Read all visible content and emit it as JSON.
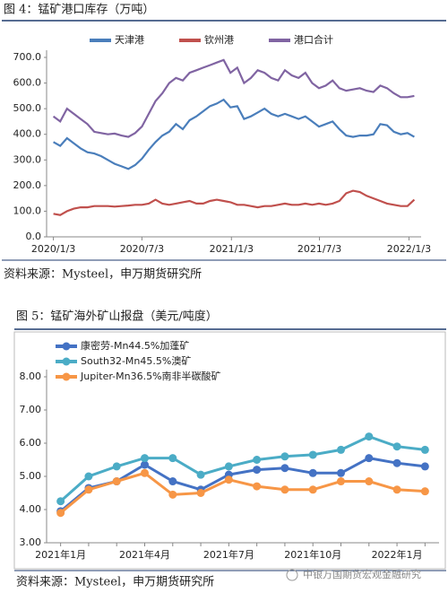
{
  "chart_data": [
    {
      "type": "line",
      "title": "图 4：锰矿港口库存（万吨）",
      "source": "资料来源：Mysteel，申万期货研究所",
      "x": [
        "2020/1/3",
        "2020/1/17",
        "2020/1/31",
        "2020/2/14",
        "2020/2/28",
        "2020/3/13",
        "2020/3/27",
        "2020/4/10",
        "2020/4/24",
        "2020/5/8",
        "2020/5/22",
        "2020/6/5",
        "2020/6/19",
        "2020/7/3",
        "2020/7/17",
        "2020/7/31",
        "2020/8/14",
        "2020/8/28",
        "2020/9/11",
        "2020/9/25",
        "2020/10/9",
        "2020/10/23",
        "2020/11/6",
        "2020/11/20",
        "2020/12/4",
        "2020/12/18",
        "2021/1/1",
        "2021/1/15",
        "2021/1/29",
        "2021/2/12",
        "2021/2/26",
        "2021/3/12",
        "2021/3/26",
        "2021/4/9",
        "2021/4/23",
        "2021/5/7",
        "2021/5/21",
        "2021/6/4",
        "2021/6/18",
        "2021/7/2",
        "2021/7/16",
        "2021/7/30",
        "2021/8/13",
        "2021/8/27",
        "2021/9/10",
        "2021/9/24",
        "2021/10/8",
        "2021/10/22",
        "2021/11/5",
        "2021/11/19",
        "2021/12/3",
        "2021/12/17",
        "2021/12/31",
        "2022/1/14"
      ],
      "series": [
        {
          "name": "天津港",
          "color": "#4a7ebb",
          "values": [
            370,
            355,
            385,
            365,
            345,
            330,
            325,
            315,
            300,
            285,
            275,
            265,
            280,
            305,
            340,
            370,
            395,
            410,
            440,
            420,
            455,
            470,
            490,
            510,
            520,
            535,
            505,
            510,
            460,
            470,
            485,
            500,
            480,
            470,
            480,
            470,
            460,
            470,
            450,
            430,
            440,
            450,
            420,
            395,
            390,
            395,
            395,
            400,
            440,
            435,
            410,
            400,
            405,
            390
          ]
        },
        {
          "name": "钦州港",
          "color": "#c0504d",
          "values": [
            90,
            85,
            100,
            110,
            115,
            115,
            120,
            120,
            120,
            118,
            120,
            122,
            125,
            125,
            130,
            145,
            130,
            125,
            130,
            135,
            140,
            130,
            130,
            140,
            145,
            140,
            135,
            125,
            125,
            120,
            115,
            120,
            120,
            125,
            130,
            125,
            125,
            130,
            125,
            130,
            125,
            130,
            140,
            170,
            180,
            175,
            160,
            150,
            140,
            130,
            125,
            120,
            120,
            145
          ]
        },
        {
          "name": "港口合计",
          "color": "#8064a2",
          "values": [
            470,
            450,
            500,
            480,
            460,
            440,
            410,
            405,
            400,
            403,
            395,
            390,
            405,
            430,
            480,
            530,
            560,
            600,
            620,
            610,
            640,
            650,
            660,
            670,
            680,
            690,
            640,
            660,
            600,
            620,
            650,
            640,
            620,
            610,
            650,
            630,
            620,
            640,
            600,
            580,
            590,
            610,
            580,
            570,
            575,
            580,
            570,
            565,
            590,
            580,
            560,
            545,
            545,
            550
          ]
        }
      ],
      "ylim": [
        0,
        700
      ],
      "yticks": [
        {
          "value": 0,
          "label": "0.0"
        },
        {
          "value": 100,
          "label": "100.0"
        },
        {
          "value": 200,
          "label": "200.0"
        },
        {
          "value": 300,
          "label": "300.0"
        },
        {
          "value": 400,
          "label": "400.0"
        },
        {
          "value": 500,
          "label": "500.0"
        },
        {
          "value": 600,
          "label": "600.0"
        },
        {
          "value": 700,
          "label": "700.0"
        }
      ],
      "xlim": [
        "2019/12/20",
        "2022/1/28"
      ],
      "xticks": [
        "2020/1/3",
        "2020/7/3",
        "2021/1/3",
        "2021/7/3",
        "2022/1/3"
      ],
      "grid": false,
      "legend": "top"
    },
    {
      "type": "line",
      "title": "图 5：锰矿海外矿山报盘（美元/吨度）",
      "source": "资料来源：Mysteel，申万期货研究所",
      "categories": [
        "2021年1月",
        null,
        null,
        "2021年4月",
        null,
        null,
        "2021年7月",
        null,
        null,
        "2021年10月",
        null,
        null,
        "2022年1月",
        null
      ],
      "series": [
        {
          "name": "康密劳-Mn44.5%加蓬矿",
          "color": "#4472c4",
          "values": [
            3.95,
            4.65,
            4.85,
            5.35,
            4.85,
            4.6,
            5.05,
            5.2,
            5.25,
            5.1,
            5.1,
            5.55,
            5.4,
            5.3
          ]
        },
        {
          "name": "South32-Mn45.5%澳矿",
          "color": "#4bacc6",
          "values": [
            4.25,
            5.0,
            5.3,
            5.55,
            5.55,
            5.05,
            5.3,
            5.5,
            5.6,
            5.65,
            5.8,
            6.2,
            5.9,
            5.8
          ]
        },
        {
          "name": "Jupiter-Mn36.5%南非半碳酸矿",
          "color": "#f79646",
          "values": [
            3.9,
            4.6,
            4.85,
            5.1,
            4.45,
            4.5,
            4.9,
            4.7,
            4.6,
            4.6,
            4.85,
            4.85,
            4.6,
            4.55
          ]
        }
      ],
      "ylim": [
        3,
        8
      ],
      "yticks": [
        {
          "value": 3,
          "label": "3.00"
        },
        {
          "value": 4,
          "label": "4.00"
        },
        {
          "value": 5,
          "label": "5.00"
        },
        {
          "value": 6,
          "label": "6.00"
        },
        {
          "value": 7,
          "label": "7.00"
        },
        {
          "value": 8,
          "label": "8.00"
        }
      ],
      "grid": false,
      "legend": "top-left"
    }
  ],
  "watermark": "中银万国期货宏观金融研究"
}
